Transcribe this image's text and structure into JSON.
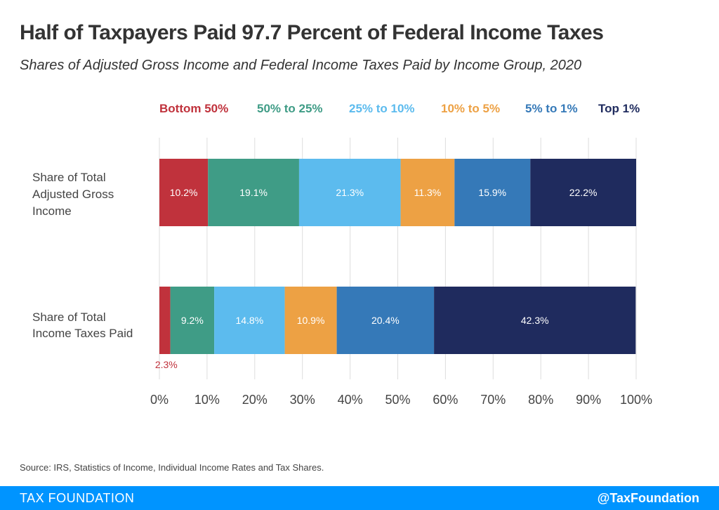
{
  "header": {
    "title": "Half of Taxpayers Paid 97.7 Percent of Federal Income Taxes",
    "subtitle": "Shares of Adjusted Gross Income and Federal Income Taxes Paid by Income Group, 2020"
  },
  "chart_data": {
    "type": "bar",
    "orientation": "horizontal",
    "stacked": true,
    "categories": [
      [
        "Share of Total",
        "Adjusted Gross",
        "Income"
      ],
      [
        "Share of Total",
        "Income Taxes Paid"
      ]
    ],
    "series": [
      {
        "name": "Bottom 50%",
        "color": "#c0323c",
        "values": [
          10.2,
          2.3
        ],
        "labels": [
          "10.2%",
          "2.3%"
        ]
      },
      {
        "name": "50% to 25%",
        "color": "#3f9c86",
        "values": [
          19.1,
          9.2
        ],
        "labels": [
          "19.1%",
          "9.2%"
        ]
      },
      {
        "name": "25% to 10%",
        "color": "#5cbbee",
        "values": [
          21.3,
          14.8
        ],
        "labels": [
          "21.3%",
          "14.8%"
        ]
      },
      {
        "name": "10% to 5%",
        "color": "#eda144",
        "values": [
          11.3,
          10.9
        ],
        "labels": [
          "11.3%",
          "10.9%"
        ]
      },
      {
        "name": "5% to 1%",
        "color": "#3579b8",
        "values": [
          15.9,
          20.4
        ],
        "labels": [
          "15.9%",
          "20.4%"
        ]
      },
      {
        "name": "Top 1%",
        "color": "#1f2b5e",
        "values": [
          22.2,
          42.3
        ],
        "labels": [
          "22.2%",
          "42.3%"
        ]
      }
    ],
    "xlim": [
      0,
      100
    ],
    "xticks": [
      "0%",
      "10%",
      "20%",
      "30%",
      "40%",
      "50%",
      "60%",
      "70%",
      "80%",
      "90%",
      "100%"
    ],
    "grid": true,
    "legend": "top"
  },
  "source": "Source: IRS, Statistics of Income, Individual Income Rates and Tax Shares.",
  "footer": {
    "brand": "TAX FOUNDATION",
    "handle": "@TaxFoundation"
  }
}
